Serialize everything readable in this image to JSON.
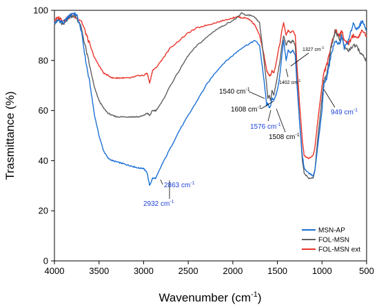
{
  "chart_data": {
    "type": "line",
    "xlabel": "Wavenumber (cm",
    "xlabel_sup": "-1",
    "xlabel_end": ")",
    "ylabel": "Trasmittance (%)",
    "xlim": [
      4000,
      500
    ],
    "ylim": [
      0,
      100
    ],
    "x_ticks": [
      4000,
      3500,
      3000,
      2500,
      2000,
      1500,
      1000,
      500
    ],
    "y_ticks": [
      0,
      20,
      40,
      60,
      80,
      100
    ],
    "legend_position": "bottom-right",
    "series": [
      {
        "name": "MSN-AP",
        "color": "#1a6fd6",
        "x": [
          4000,
          3950,
          3900,
          3850,
          3800,
          3750,
          3700,
          3650,
          3600,
          3550,
          3500,
          3450,
          3400,
          3350,
          3300,
          3250,
          3200,
          3150,
          3100,
          3050,
          3000,
          2960,
          2932,
          2900,
          2863,
          2800,
          2700,
          2600,
          2500,
          2400,
          2300,
          2200,
          2100,
          2000,
          1900,
          1800,
          1750,
          1700,
          1650,
          1620,
          1608,
          1590,
          1576,
          1560,
          1540,
          1520,
          1508,
          1490,
          1470,
          1450,
          1430,
          1402,
          1380,
          1350,
          1327,
          1300,
          1280,
          1250,
          1220,
          1200,
          1150,
          1100,
          1080,
          1050,
          1000,
          980,
          949,
          920,
          900,
          850,
          800,
          780,
          750,
          700,
          650,
          600,
          550,
          500
        ],
        "y": [
          95,
          96,
          95,
          97,
          99,
          98,
          92,
          80,
          70,
          58,
          50,
          44,
          41,
          40,
          39.5,
          39,
          38.5,
          38,
          37.5,
          37,
          37,
          35,
          30,
          33,
          33,
          38,
          45,
          52,
          58,
          64,
          70,
          75,
          79,
          82,
          85,
          87,
          88,
          86,
          72,
          62,
          63,
          61,
          62,
          65,
          64,
          66,
          67,
          70,
          75,
          82,
          88,
          80,
          84,
          83,
          84,
          82,
          70,
          55,
          42,
          37,
          35,
          34,
          36,
          45,
          60,
          70,
          73,
          78,
          82,
          88,
          86,
          90,
          85,
          88,
          95,
          92,
          96,
          92
        ]
      },
      {
        "name": "FOL-MSN",
        "color": "#5f5f5f",
        "x": [
          4000,
          3950,
          3900,
          3850,
          3800,
          3750,
          3700,
          3650,
          3600,
          3550,
          3500,
          3450,
          3400,
          3350,
          3300,
          3250,
          3200,
          3150,
          3100,
          3050,
          3000,
          2960,
          2932,
          2900,
          2863,
          2800,
          2700,
          2600,
          2500,
          2400,
          2300,
          2200,
          2100,
          2000,
          1950,
          1900,
          1850,
          1800,
          1750,
          1700,
          1650,
          1620,
          1608,
          1590,
          1576,
          1560,
          1540,
          1520,
          1508,
          1490,
          1470,
          1450,
          1430,
          1402,
          1380,
          1350,
          1327,
          1300,
          1280,
          1250,
          1220,
          1200,
          1150,
          1100,
          1080,
          1050,
          1000,
          980,
          949,
          920,
          900,
          850,
          800,
          780,
          750,
          700,
          650,
          600,
          550,
          500
        ],
        "y": [
          95,
          96,
          94,
          97,
          98,
          97,
          93,
          85,
          77,
          69,
          64,
          61,
          59,
          58,
          57.5,
          57.5,
          57.5,
          57.5,
          57.5,
          57.5,
          58,
          59,
          58,
          60,
          60,
          63,
          70,
          76,
          82,
          86,
          89,
          92,
          94,
          96,
          97,
          99,
          98,
          98,
          97,
          95,
          80,
          70,
          65,
          66,
          64,
          68,
          66,
          70,
          72,
          76,
          80,
          86,
          90,
          86,
          88,
          87,
          88,
          86,
          72,
          55,
          40,
          35,
          33,
          33,
          36,
          48,
          65,
          72,
          74,
          80,
          85,
          92,
          88,
          90,
          85,
          84,
          86,
          85,
          82,
          80
        ]
      },
      {
        "name": "FOL-MSN ext",
        "color": "#e8332a",
        "x": [
          4000,
          3950,
          3900,
          3850,
          3800,
          3750,
          3700,
          3650,
          3600,
          3550,
          3500,
          3450,
          3400,
          3350,
          3300,
          3250,
          3200,
          3150,
          3100,
          3050,
          3000,
          2960,
          2932,
          2900,
          2863,
          2800,
          2700,
          2600,
          2500,
          2400,
          2300,
          2200,
          2100,
          2000,
          1950,
          1900,
          1850,
          1800,
          1750,
          1700,
          1650,
          1620,
          1608,
          1590,
          1576,
          1560,
          1540,
          1520,
          1508,
          1490,
          1470,
          1450,
          1430,
          1402,
          1380,
          1350,
          1327,
          1300,
          1280,
          1250,
          1220,
          1200,
          1150,
          1100,
          1080,
          1050,
          1000,
          980,
          949,
          920,
          900,
          850,
          800,
          780,
          750,
          700,
          650,
          600,
          550,
          500
        ],
        "y": [
          96,
          97,
          96,
          97,
          98,
          97,
          96,
          91,
          86,
          81,
          78,
          75,
          74,
          73,
          73,
          73,
          73,
          73,
          73.5,
          74,
          74,
          75,
          71,
          76,
          77,
          80,
          85,
          88,
          91,
          93,
          94,
          95,
          96,
          97,
          97.5,
          97,
          97,
          96,
          94,
          90,
          82,
          76,
          75,
          74,
          74,
          76,
          75,
          78,
          80,
          84,
          87,
          92,
          95,
          90,
          92,
          91,
          92,
          90,
          78,
          62,
          48,
          42,
          41,
          42,
          45,
          55,
          70,
          75,
          78,
          82,
          86,
          92,
          90,
          92,
          88,
          87,
          90,
          89,
          92,
          90
        ]
      }
    ],
    "annotations": [
      {
        "text": "2932 cm",
        "sup": "-1",
        "color": "#1a3fd6",
        "x": 2932,
        "y": 30,
        "size": "normal"
      },
      {
        "text": "2863 cm",
        "sup": "-1",
        "color": "#1a3fd6",
        "x": 2863,
        "y": 33,
        "size": "normal"
      },
      {
        "text": "1540 cm",
        "sup": "-1",
        "color": "#000000",
        "x": 1540,
        "y": 66,
        "size": "normal"
      },
      {
        "text": "1608 cm",
        "sup": "-1",
        "color": "#000000",
        "x": 1608,
        "y": 65,
        "size": "normal"
      },
      {
        "text": "1576 cm",
        "sup": "-1",
        "color": "#1a3fd6",
        "x": 1576,
        "y": 62,
        "size": "normal"
      },
      {
        "text": "1508 cm",
        "sup": "-1",
        "color": "#000000",
        "x": 1508,
        "y": 65,
        "size": "normal"
      },
      {
        "text": "1402 cm",
        "sup": "-1",
        "color": "#000000",
        "x": 1402,
        "y": 80,
        "size": "small"
      },
      {
        "text": "1327 cm",
        "sup": "-1",
        "color": "#000000",
        "x": 1327,
        "y": 84,
        "size": "small"
      },
      {
        "text": "949 cm",
        "sup": "-1",
        "color": "#1a3fd6",
        "x": 949,
        "y": 73,
        "size": "normal"
      }
    ]
  }
}
